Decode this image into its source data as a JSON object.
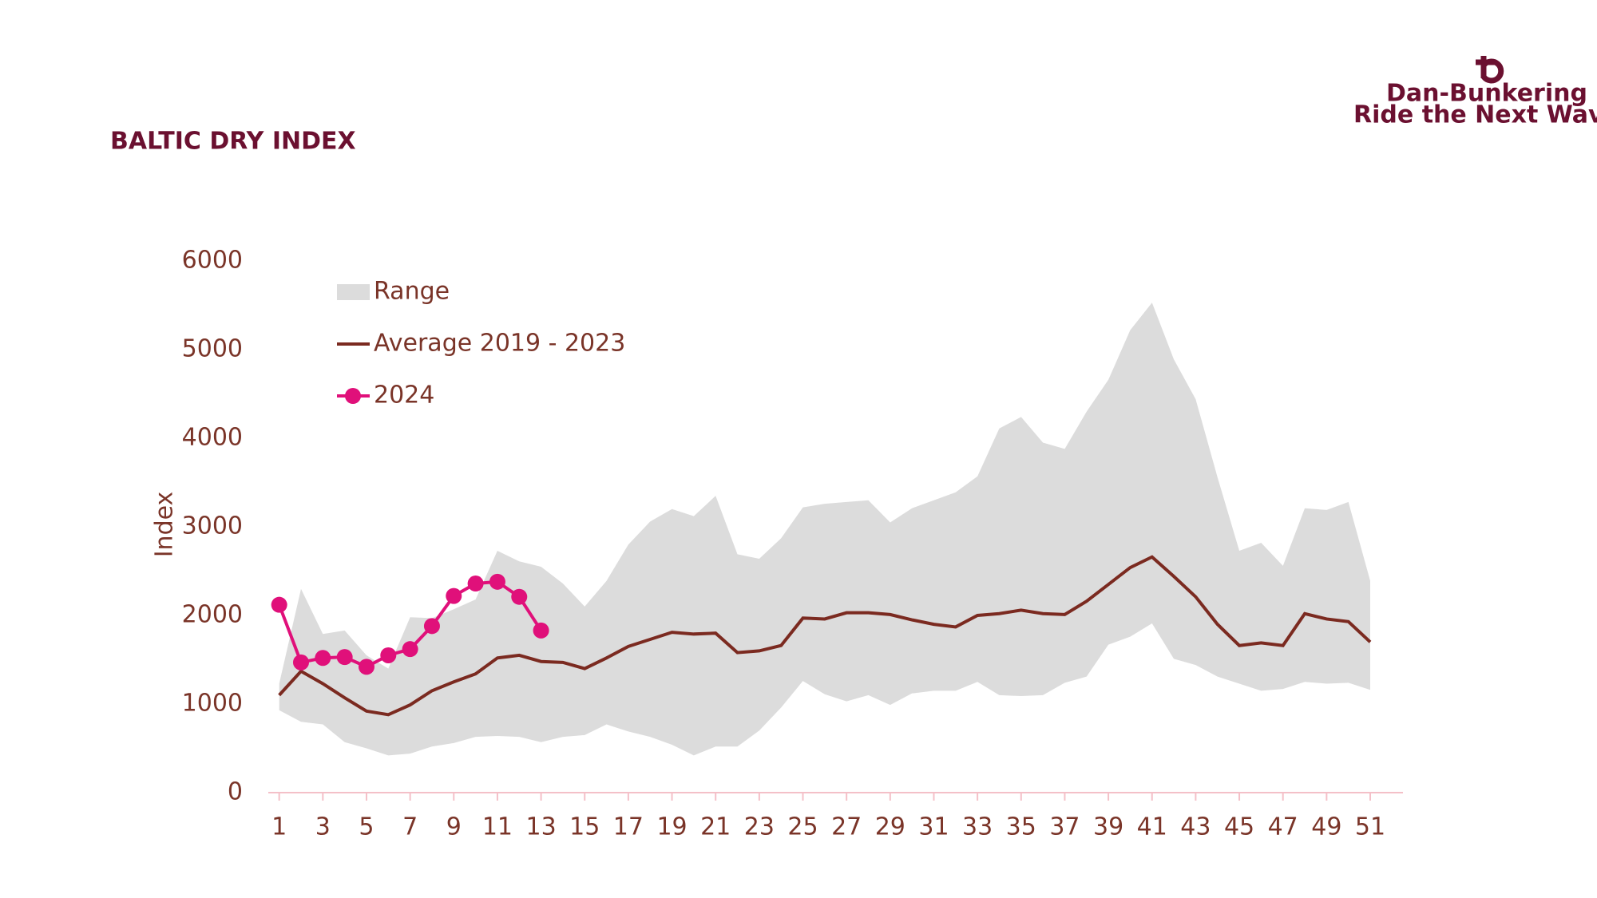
{
  "logo": {
    "name": "Dan-Bunkering",
    "tagline": "Ride the Next Wave"
  },
  "chart_data": {
    "type": "line",
    "title": "BALTIC DRY INDEX",
    "ylabel": "Index",
    "x": [
      1,
      2,
      3,
      4,
      5,
      6,
      7,
      8,
      9,
      10,
      11,
      12,
      13,
      14,
      15,
      16,
      17,
      18,
      19,
      20,
      21,
      22,
      23,
      24,
      25,
      26,
      27,
      28,
      29,
      30,
      31,
      32,
      33,
      34,
      35,
      36,
      37,
      38,
      39,
      40,
      41,
      42,
      43,
      44,
      45,
      46,
      47,
      48,
      49,
      50,
      51
    ],
    "xlim": [
      0.5,
      52.5
    ],
    "xticks": [
      1,
      3,
      5,
      7,
      9,
      11,
      13,
      15,
      17,
      19,
      21,
      23,
      25,
      27,
      29,
      31,
      33,
      35,
      37,
      39,
      41,
      43,
      45,
      47,
      49,
      51
    ],
    "ylim": [
      0,
      6000
    ],
    "yticks": [
      0,
      1000,
      2000,
      3000,
      4000,
      5000,
      6000
    ],
    "legend": "top-left",
    "series": [
      {
        "name": "Range",
        "type": "area",
        "color": "#dcdcdc",
        "high": [
          1230,
          2300,
          1790,
          1830,
          1550,
          1400,
          1980,
          1970,
          2070,
          2180,
          2730,
          2610,
          2550,
          2360,
          2100,
          2390,
          2800,
          3060,
          3200,
          3120,
          3350,
          2690,
          2640,
          2870,
          3220,
          3260,
          3280,
          3300,
          3050,
          3210,
          3300,
          3390,
          3570,
          4110,
          4240,
          3950,
          3880,
          4300,
          4660,
          5220,
          5530,
          4890,
          4440,
          3560,
          2730,
          2820,
          2560,
          3210,
          3190,
          3280,
          2390
        ],
        "low": [
          930,
          800,
          770,
          570,
          500,
          420,
          440,
          520,
          560,
          630,
          640,
          630,
          570,
          630,
          650,
          770,
          690,
          630,
          540,
          420,
          520,
          520,
          700,
          960,
          1260,
          1110,
          1030,
          1100,
          990,
          1120,
          1150,
          1150,
          1250,
          1100,
          1090,
          1100,
          1240,
          1310,
          1670,
          1760,
          1910,
          1510,
          1440,
          1310,
          1230,
          1150,
          1170,
          1250,
          1230,
          1240,
          1160
        ]
      },
      {
        "name": "Average 2019 - 2023",
        "type": "line",
        "color": "#7b2a20",
        "values": [
          1100,
          1370,
          1230,
          1070,
          920,
          880,
          990,
          1150,
          1250,
          1340,
          1520,
          1550,
          1480,
          1470,
          1400,
          1520,
          1650,
          1730,
          1810,
          1790,
          1800,
          1580,
          1600,
          1660,
          1970,
          1960,
          2030,
          2030,
          2010,
          1950,
          1900,
          1870,
          2000,
          2020,
          2060,
          2020,
          2010,
          2160,
          2350,
          2540,
          2660,
          2440,
          2210,
          1900,
          1660,
          1690,
          1660,
          2020,
          1960,
          1930,
          1700
        ]
      },
      {
        "name": "2024",
        "type": "line",
        "markers": true,
        "color": "#e0107a",
        "values": [
          2120,
          1470,
          1520,
          1530,
          1420,
          1550,
          1620,
          1880,
          2220,
          2360,
          2380,
          2210,
          1830,
          null,
          null,
          null,
          null,
          null,
          null,
          null,
          null,
          null,
          null,
          null,
          null,
          null,
          null,
          null,
          null,
          null,
          null,
          null,
          null,
          null,
          null,
          null,
          null,
          null,
          null,
          null,
          null,
          null,
          null,
          null,
          null,
          null,
          null,
          null,
          null,
          null,
          null
        ]
      }
    ]
  }
}
